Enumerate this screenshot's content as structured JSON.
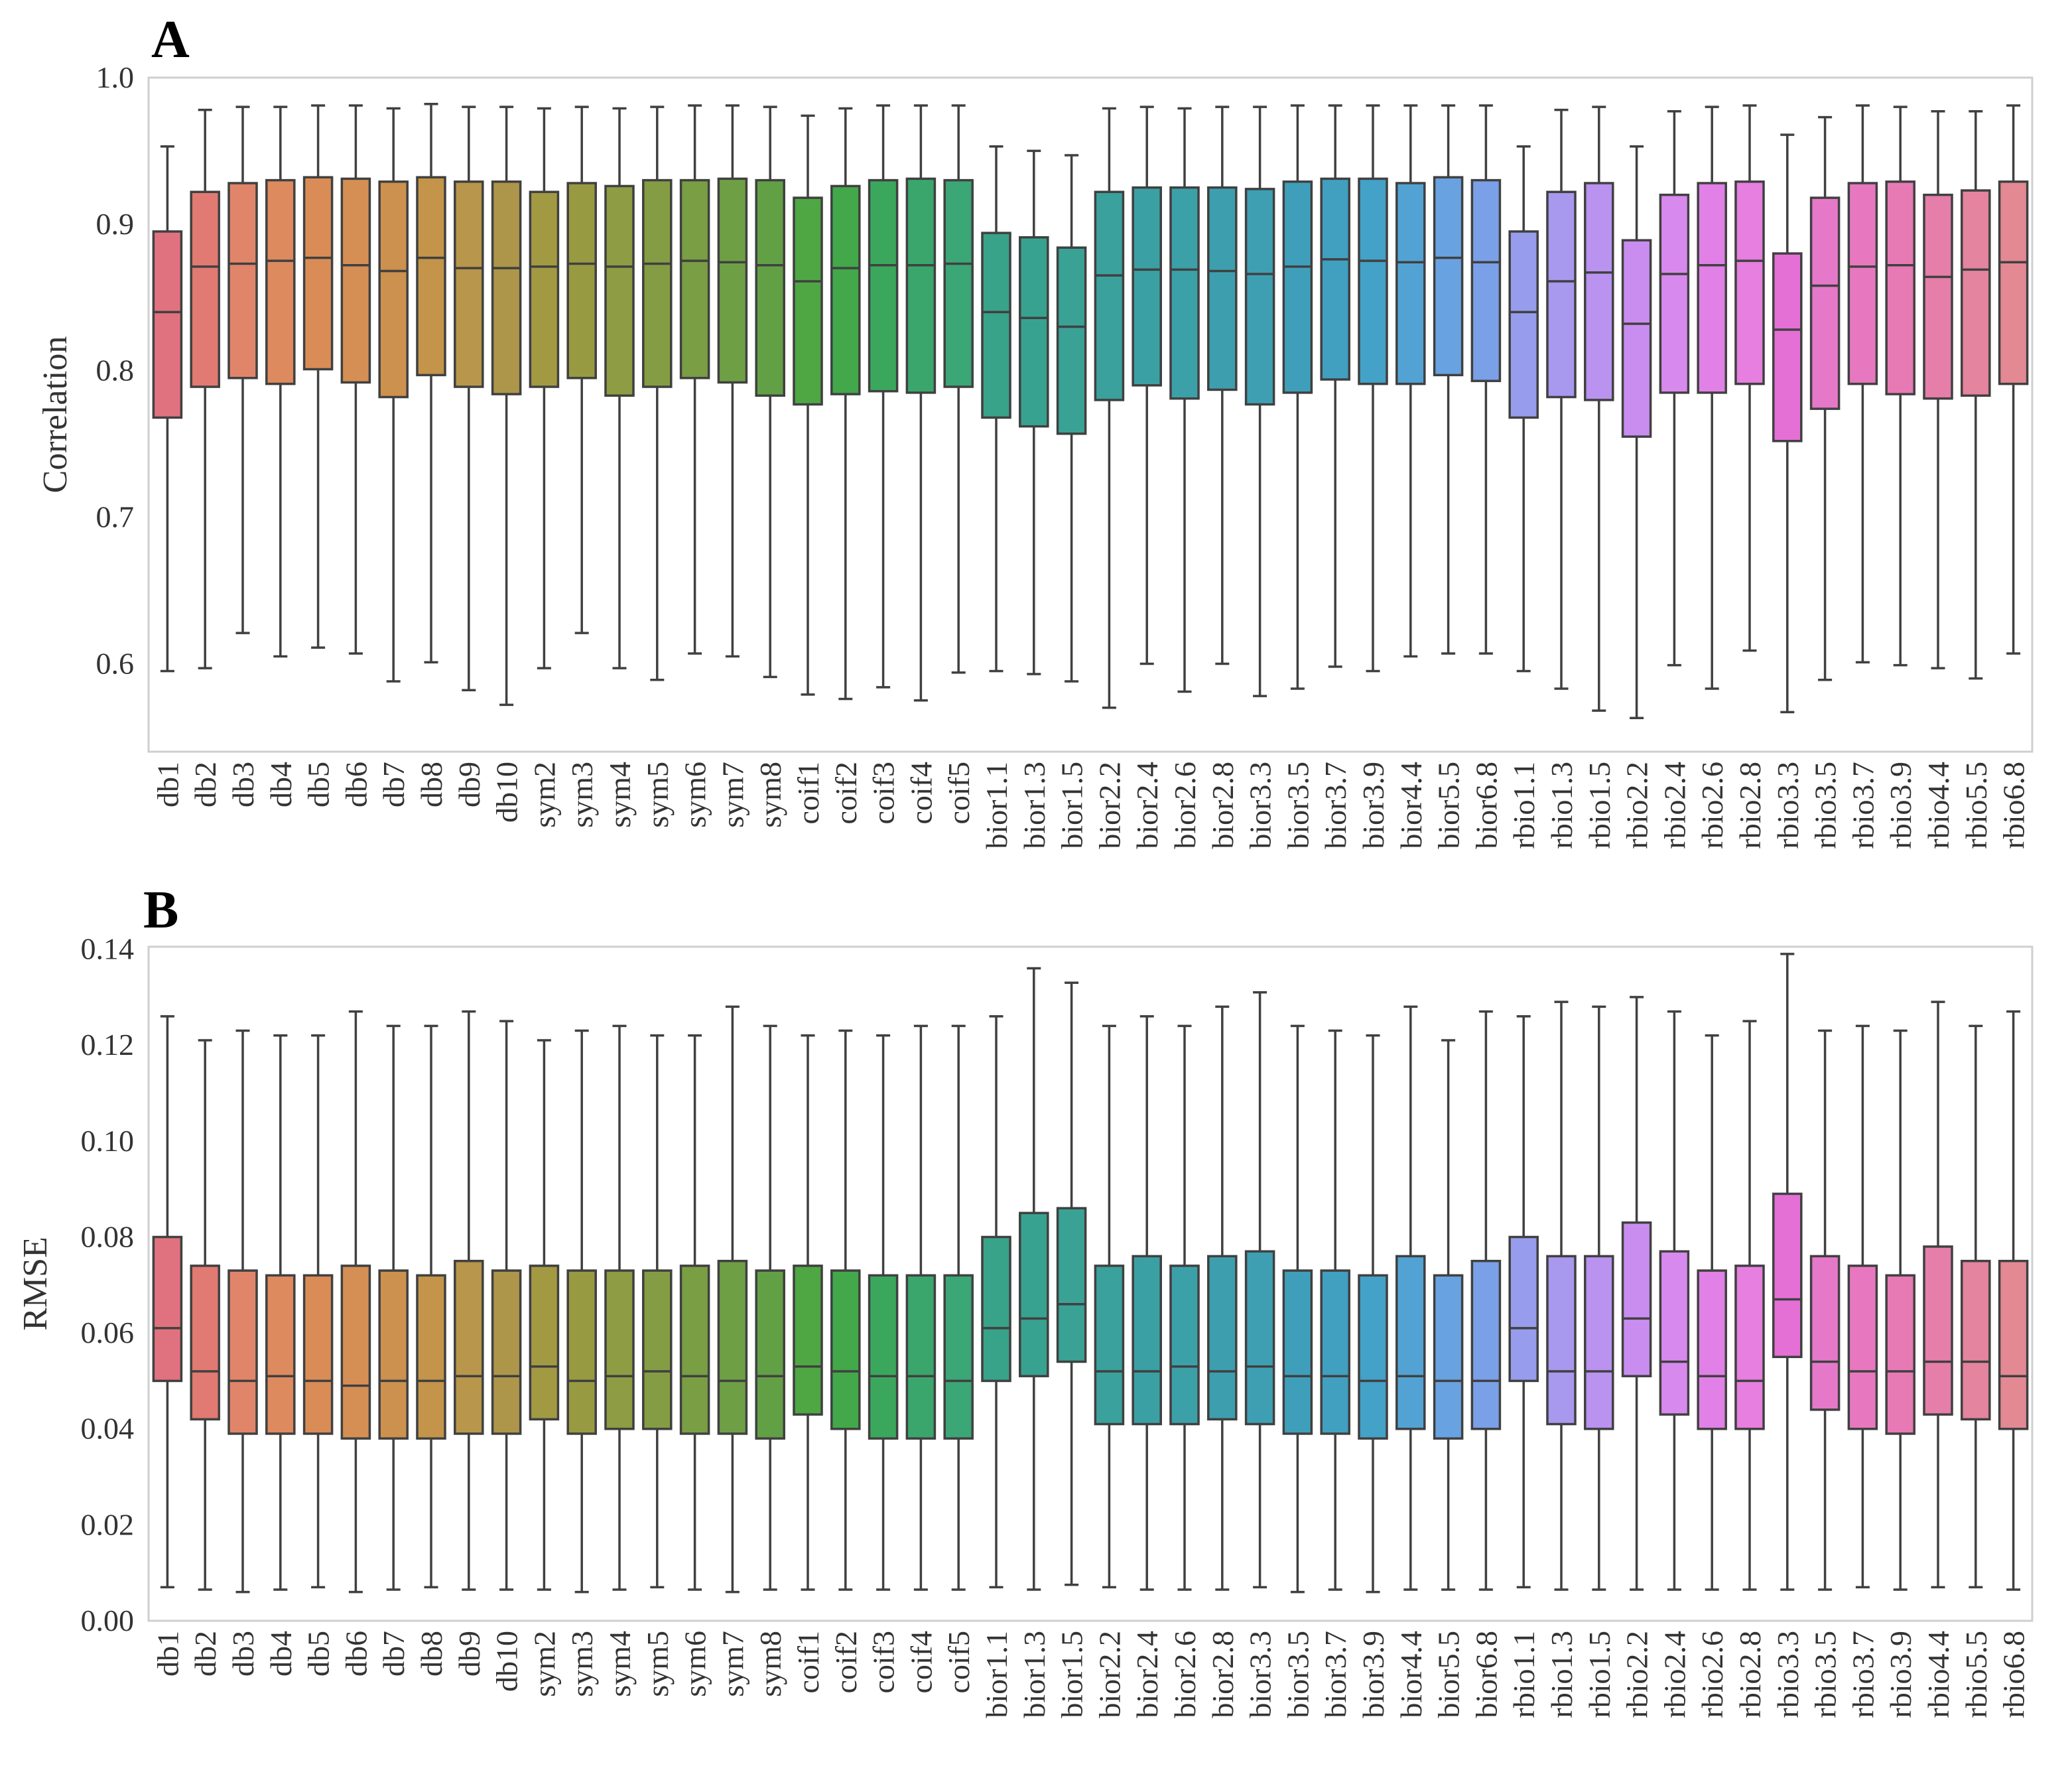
{
  "panels": [
    {
      "letter": "A"
    },
    {
      "letter": "B"
    }
  ],
  "chart_data": [
    {
      "type": "box",
      "panel": "A",
      "ylabel": "Correlation",
      "xlabel": "",
      "ylim": [
        0.54,
        1.0
      ],
      "yticks": [
        "0.6",
        "0.7",
        "0.8",
        "0.9",
        "1.0"
      ],
      "grid": false,
      "categories": [
        "db1",
        "db2",
        "db3",
        "db4",
        "db5",
        "db6",
        "db7",
        "db8",
        "db9",
        "db10",
        "sym2",
        "sym3",
        "sym4",
        "sym5",
        "sym6",
        "sym7",
        "sym8",
        "coif1",
        "coif2",
        "coif3",
        "coif4",
        "coif5",
        "bior1.1",
        "bior1.3",
        "bior1.5",
        "bior2.2",
        "bior2.4",
        "bior2.6",
        "bior2.8",
        "bior3.3",
        "bior3.5",
        "bior3.7",
        "bior3.9",
        "bior4.4",
        "bior5.5",
        "bior6.8",
        "rbio1.1",
        "rbio1.3",
        "rbio1.5",
        "rbio2.2",
        "rbio2.4",
        "rbio2.6",
        "rbio2.8",
        "rbio3.3",
        "rbio3.5",
        "rbio3.7",
        "rbio3.9",
        "rbio4.4",
        "rbio5.5",
        "rbio6.8"
      ],
      "colors": [
        "#e0727f",
        "#e17a72",
        "#e0856a",
        "#dd8a5f",
        "#da8c57",
        "#d58f54",
        "#cc914e",
        "#c39449",
        "#b8964b",
        "#ad964a",
        "#a29a43",
        "#989a42",
        "#8e9c43",
        "#849d44",
        "#799e44",
        "#6e9f45",
        "#62a046",
        "#4ea743",
        "#42a84a",
        "#3ba75d",
        "#3aa66c",
        "#3ba676",
        "#38a388",
        "#38a290",
        "#39a295",
        "#3aa19d",
        "#3ba0a3",
        "#3ca0a9",
        "#3d9fae",
        "#3e9fb3",
        "#3f9fba",
        "#41a0c0",
        "#44a1c7",
        "#52a3d3",
        "#68a2e0",
        "#7aa0e8",
        "#979dec",
        "#a898ee",
        "#b993ef",
        "#c98df0",
        "#d889ee",
        "#e180e6",
        "#e67fe0",
        "#e470d6",
        "#e678ca",
        "#e778bf",
        "#e77ab5",
        "#e57ea9",
        "#e4849e",
        "#e28994"
      ],
      "stats": [
        {
          "min": 0.595,
          "q1": 0.768,
          "median": 0.84,
          "q3": 0.895,
          "max": 0.953
        },
        {
          "min": 0.597,
          "q1": 0.789,
          "median": 0.871,
          "q3": 0.922,
          "max": 0.978
        },
        {
          "min": 0.621,
          "q1": 0.795,
          "median": 0.873,
          "q3": 0.928,
          "max": 0.98
        },
        {
          "min": 0.605,
          "q1": 0.791,
          "median": 0.875,
          "q3": 0.93,
          "max": 0.98
        },
        {
          "min": 0.611,
          "q1": 0.801,
          "median": 0.877,
          "q3": 0.932,
          "max": 0.981
        },
        {
          "min": 0.607,
          "q1": 0.792,
          "median": 0.872,
          "q3": 0.931,
          "max": 0.981
        },
        {
          "min": 0.588,
          "q1": 0.782,
          "median": 0.868,
          "q3": 0.929,
          "max": 0.979
        },
        {
          "min": 0.601,
          "q1": 0.797,
          "median": 0.877,
          "q3": 0.932,
          "max": 0.982
        },
        {
          "min": 0.582,
          "q1": 0.789,
          "median": 0.87,
          "q3": 0.929,
          "max": 0.98
        },
        {
          "min": 0.572,
          "q1": 0.784,
          "median": 0.87,
          "q3": 0.929,
          "max": 0.98
        },
        {
          "min": 0.597,
          "q1": 0.789,
          "median": 0.871,
          "q3": 0.922,
          "max": 0.979
        },
        {
          "min": 0.621,
          "q1": 0.795,
          "median": 0.873,
          "q3": 0.928,
          "max": 0.98
        },
        {
          "min": 0.597,
          "q1": 0.783,
          "median": 0.871,
          "q3": 0.926,
          "max": 0.979
        },
        {
          "min": 0.589,
          "q1": 0.789,
          "median": 0.873,
          "q3": 0.93,
          "max": 0.98
        },
        {
          "min": 0.607,
          "q1": 0.795,
          "median": 0.875,
          "q3": 0.93,
          "max": 0.981
        },
        {
          "min": 0.605,
          "q1": 0.792,
          "median": 0.874,
          "q3": 0.931,
          "max": 0.981
        },
        {
          "min": 0.591,
          "q1": 0.783,
          "median": 0.872,
          "q3": 0.93,
          "max": 0.98
        },
        {
          "min": 0.579,
          "q1": 0.777,
          "median": 0.861,
          "q3": 0.918,
          "max": 0.974
        },
        {
          "min": 0.576,
          "q1": 0.784,
          "median": 0.87,
          "q3": 0.926,
          "max": 0.979
        },
        {
          "min": 0.584,
          "q1": 0.786,
          "median": 0.872,
          "q3": 0.93,
          "max": 0.981
        },
        {
          "min": 0.575,
          "q1": 0.785,
          "median": 0.872,
          "q3": 0.931,
          "max": 0.981
        },
        {
          "min": 0.594,
          "q1": 0.789,
          "median": 0.873,
          "q3": 0.93,
          "max": 0.981
        },
        {
          "min": 0.595,
          "q1": 0.768,
          "median": 0.84,
          "q3": 0.894,
          "max": 0.953
        },
        {
          "min": 0.593,
          "q1": 0.762,
          "median": 0.836,
          "q3": 0.891,
          "max": 0.95
        },
        {
          "min": 0.588,
          "q1": 0.757,
          "median": 0.83,
          "q3": 0.884,
          "max": 0.947
        },
        {
          "min": 0.57,
          "q1": 0.78,
          "median": 0.865,
          "q3": 0.922,
          "max": 0.979
        },
        {
          "min": 0.6,
          "q1": 0.79,
          "median": 0.869,
          "q3": 0.925,
          "max": 0.98
        },
        {
          "min": 0.581,
          "q1": 0.781,
          "median": 0.869,
          "q3": 0.925,
          "max": 0.979
        },
        {
          "min": 0.6,
          "q1": 0.787,
          "median": 0.868,
          "q3": 0.925,
          "max": 0.98
        },
        {
          "min": 0.578,
          "q1": 0.777,
          "median": 0.866,
          "q3": 0.924,
          "max": 0.98
        },
        {
          "min": 0.583,
          "q1": 0.785,
          "median": 0.871,
          "q3": 0.929,
          "max": 0.981
        },
        {
          "min": 0.598,
          "q1": 0.794,
          "median": 0.876,
          "q3": 0.931,
          "max": 0.981
        },
        {
          "min": 0.595,
          "q1": 0.791,
          "median": 0.875,
          "q3": 0.931,
          "max": 0.981
        },
        {
          "min": 0.605,
          "q1": 0.791,
          "median": 0.874,
          "q3": 0.928,
          "max": 0.981
        },
        {
          "min": 0.607,
          "q1": 0.797,
          "median": 0.877,
          "q3": 0.932,
          "max": 0.981
        },
        {
          "min": 0.607,
          "q1": 0.793,
          "median": 0.874,
          "q3": 0.93,
          "max": 0.981
        },
        {
          "min": 0.595,
          "q1": 0.768,
          "median": 0.84,
          "q3": 0.895,
          "max": 0.953
        },
        {
          "min": 0.583,
          "q1": 0.782,
          "median": 0.861,
          "q3": 0.922,
          "max": 0.978
        },
        {
          "min": 0.568,
          "q1": 0.78,
          "median": 0.867,
          "q3": 0.928,
          "max": 0.98
        },
        {
          "min": 0.563,
          "q1": 0.755,
          "median": 0.832,
          "q3": 0.889,
          "max": 0.953
        },
        {
          "min": 0.599,
          "q1": 0.785,
          "median": 0.866,
          "q3": 0.92,
          "max": 0.977
        },
        {
          "min": 0.583,
          "q1": 0.785,
          "median": 0.872,
          "q3": 0.928,
          "max": 0.98
        },
        {
          "min": 0.609,
          "q1": 0.791,
          "median": 0.875,
          "q3": 0.929,
          "max": 0.981
        },
        {
          "min": 0.567,
          "q1": 0.752,
          "median": 0.828,
          "q3": 0.88,
          "max": 0.961
        },
        {
          "min": 0.589,
          "q1": 0.774,
          "median": 0.858,
          "q3": 0.918,
          "max": 0.973
        },
        {
          "min": 0.601,
          "q1": 0.791,
          "median": 0.871,
          "q3": 0.928,
          "max": 0.981
        },
        {
          "min": 0.599,
          "q1": 0.784,
          "median": 0.872,
          "q3": 0.929,
          "max": 0.98
        },
        {
          "min": 0.597,
          "q1": 0.781,
          "median": 0.864,
          "q3": 0.92,
          "max": 0.977
        },
        {
          "min": 0.59,
          "q1": 0.783,
          "median": 0.869,
          "q3": 0.923,
          "max": 0.977
        },
        {
          "min": 0.607,
          "q1": 0.791,
          "median": 0.874,
          "q3": 0.929,
          "max": 0.981
        }
      ]
    },
    {
      "type": "box",
      "panel": "B",
      "ylabel": "RMSE",
      "xlabel": "",
      "ylim": [
        0.0,
        0.1405
      ],
      "yticks": [
        "0.00",
        "0.02",
        "0.04",
        "0.06",
        "0.08",
        "0.10",
        "0.12",
        "0.14"
      ],
      "grid": false,
      "categories": [
        "db1",
        "db2",
        "db3",
        "db4",
        "db5",
        "db6",
        "db7",
        "db8",
        "db9",
        "db10",
        "sym2",
        "sym3",
        "sym4",
        "sym5",
        "sym6",
        "sym7",
        "sym8",
        "coif1",
        "coif2",
        "coif3",
        "coif4",
        "coif5",
        "bior1.1",
        "bior1.3",
        "bior1.5",
        "bior2.2",
        "bior2.4",
        "bior2.6",
        "bior2.8",
        "bior3.3",
        "bior3.5",
        "bior3.7",
        "bior3.9",
        "bior4.4",
        "bior5.5",
        "bior6.8",
        "rbio1.1",
        "rbio1.3",
        "rbio1.5",
        "rbio2.2",
        "rbio2.4",
        "rbio2.6",
        "rbio2.8",
        "rbio3.3",
        "rbio3.5",
        "rbio3.7",
        "rbio3.9",
        "rbio4.4",
        "rbio5.5",
        "rbio6.8"
      ],
      "colors": [
        "#e0727f",
        "#e17a72",
        "#e0856a",
        "#dd8a5f",
        "#da8c57",
        "#d58f54",
        "#cc914e",
        "#c39449",
        "#b8964b",
        "#ad964a",
        "#a29a43",
        "#989a42",
        "#8e9c43",
        "#849d44",
        "#799e44",
        "#6e9f45",
        "#62a046",
        "#4ea743",
        "#42a84a",
        "#3ba75d",
        "#3aa66c",
        "#3ba676",
        "#38a388",
        "#38a290",
        "#39a295",
        "#3aa19d",
        "#3ba0a3",
        "#3ca0a9",
        "#3d9fae",
        "#3e9fb3",
        "#3f9fba",
        "#41a0c0",
        "#44a1c7",
        "#52a3d3",
        "#68a2e0",
        "#7aa0e8",
        "#979dec",
        "#a898ee",
        "#b993ef",
        "#c98df0",
        "#d889ee",
        "#e180e6",
        "#e67fe0",
        "#e470d6",
        "#e678ca",
        "#e778bf",
        "#e77ab5",
        "#e57ea9",
        "#e4849e",
        "#e28994"
      ],
      "stats": [
        {
          "min": 0.007,
          "q1": 0.05,
          "median": 0.061,
          "q3": 0.08,
          "max": 0.126
        },
        {
          "min": 0.0065,
          "q1": 0.042,
          "median": 0.052,
          "q3": 0.074,
          "max": 0.121
        },
        {
          "min": 0.006,
          "q1": 0.039,
          "median": 0.05,
          "q3": 0.073,
          "max": 0.123
        },
        {
          "min": 0.0065,
          "q1": 0.039,
          "median": 0.051,
          "q3": 0.072,
          "max": 0.122
        },
        {
          "min": 0.007,
          "q1": 0.039,
          "median": 0.05,
          "q3": 0.072,
          "max": 0.122
        },
        {
          "min": 0.006,
          "q1": 0.038,
          "median": 0.049,
          "q3": 0.074,
          "max": 0.127
        },
        {
          "min": 0.0065,
          "q1": 0.038,
          "median": 0.05,
          "q3": 0.073,
          "max": 0.124
        },
        {
          "min": 0.007,
          "q1": 0.038,
          "median": 0.05,
          "q3": 0.072,
          "max": 0.124
        },
        {
          "min": 0.0065,
          "q1": 0.039,
          "median": 0.051,
          "q3": 0.075,
          "max": 0.127
        },
        {
          "min": 0.0065,
          "q1": 0.039,
          "median": 0.051,
          "q3": 0.073,
          "max": 0.125
        },
        {
          "min": 0.0065,
          "q1": 0.042,
          "median": 0.053,
          "q3": 0.074,
          "max": 0.121
        },
        {
          "min": 0.006,
          "q1": 0.039,
          "median": 0.05,
          "q3": 0.073,
          "max": 0.123
        },
        {
          "min": 0.0065,
          "q1": 0.04,
          "median": 0.051,
          "q3": 0.073,
          "max": 0.124
        },
        {
          "min": 0.007,
          "q1": 0.04,
          "median": 0.052,
          "q3": 0.073,
          "max": 0.122
        },
        {
          "min": 0.0065,
          "q1": 0.039,
          "median": 0.051,
          "q3": 0.074,
          "max": 0.122
        },
        {
          "min": 0.006,
          "q1": 0.039,
          "median": 0.05,
          "q3": 0.075,
          "max": 0.128
        },
        {
          "min": 0.0065,
          "q1": 0.038,
          "median": 0.051,
          "q3": 0.073,
          "max": 0.124
        },
        {
          "min": 0.0065,
          "q1": 0.043,
          "median": 0.053,
          "q3": 0.074,
          "max": 0.122
        },
        {
          "min": 0.0065,
          "q1": 0.04,
          "median": 0.052,
          "q3": 0.073,
          "max": 0.123
        },
        {
          "min": 0.0065,
          "q1": 0.038,
          "median": 0.051,
          "q3": 0.072,
          "max": 0.122
        },
        {
          "min": 0.0065,
          "q1": 0.038,
          "median": 0.051,
          "q3": 0.072,
          "max": 0.124
        },
        {
          "min": 0.0065,
          "q1": 0.038,
          "median": 0.05,
          "q3": 0.072,
          "max": 0.124
        },
        {
          "min": 0.007,
          "q1": 0.05,
          "median": 0.061,
          "q3": 0.08,
          "max": 0.126
        },
        {
          "min": 0.0065,
          "q1": 0.051,
          "median": 0.063,
          "q3": 0.085,
          "max": 0.136
        },
        {
          "min": 0.0075,
          "q1": 0.054,
          "median": 0.066,
          "q3": 0.086,
          "max": 0.133
        },
        {
          "min": 0.007,
          "q1": 0.041,
          "median": 0.052,
          "q3": 0.074,
          "max": 0.124
        },
        {
          "min": 0.0065,
          "q1": 0.041,
          "median": 0.052,
          "q3": 0.076,
          "max": 0.126
        },
        {
          "min": 0.0065,
          "q1": 0.041,
          "median": 0.053,
          "q3": 0.074,
          "max": 0.124
        },
        {
          "min": 0.0065,
          "q1": 0.042,
          "median": 0.052,
          "q3": 0.076,
          "max": 0.128
        },
        {
          "min": 0.007,
          "q1": 0.041,
          "median": 0.053,
          "q3": 0.077,
          "max": 0.131
        },
        {
          "min": 0.006,
          "q1": 0.039,
          "median": 0.051,
          "q3": 0.073,
          "max": 0.124
        },
        {
          "min": 0.0065,
          "q1": 0.039,
          "median": 0.051,
          "q3": 0.073,
          "max": 0.123
        },
        {
          "min": 0.006,
          "q1": 0.038,
          "median": 0.05,
          "q3": 0.072,
          "max": 0.122
        },
        {
          "min": 0.0065,
          "q1": 0.04,
          "median": 0.051,
          "q3": 0.076,
          "max": 0.128
        },
        {
          "min": 0.0065,
          "q1": 0.038,
          "median": 0.05,
          "q3": 0.072,
          "max": 0.121
        },
        {
          "min": 0.0065,
          "q1": 0.04,
          "median": 0.05,
          "q3": 0.075,
          "max": 0.127
        },
        {
          "min": 0.007,
          "q1": 0.05,
          "median": 0.061,
          "q3": 0.08,
          "max": 0.126
        },
        {
          "min": 0.0065,
          "q1": 0.041,
          "median": 0.052,
          "q3": 0.076,
          "max": 0.129
        },
        {
          "min": 0.0065,
          "q1": 0.04,
          "median": 0.052,
          "q3": 0.076,
          "max": 0.128
        },
        {
          "min": 0.0065,
          "q1": 0.051,
          "median": 0.063,
          "q3": 0.083,
          "max": 0.13
        },
        {
          "min": 0.0065,
          "q1": 0.043,
          "median": 0.054,
          "q3": 0.077,
          "max": 0.127
        },
        {
          "min": 0.0065,
          "q1": 0.04,
          "median": 0.051,
          "q3": 0.073,
          "max": 0.122
        },
        {
          "min": 0.0065,
          "q1": 0.04,
          "median": 0.05,
          "q3": 0.074,
          "max": 0.125
        },
        {
          "min": 0.0065,
          "q1": 0.055,
          "median": 0.067,
          "q3": 0.089,
          "max": 0.139
        },
        {
          "min": 0.0065,
          "q1": 0.044,
          "median": 0.054,
          "q3": 0.076,
          "max": 0.123
        },
        {
          "min": 0.007,
          "q1": 0.04,
          "median": 0.052,
          "q3": 0.074,
          "max": 0.124
        },
        {
          "min": 0.0065,
          "q1": 0.039,
          "median": 0.052,
          "q3": 0.072,
          "max": 0.123
        },
        {
          "min": 0.007,
          "q1": 0.043,
          "median": 0.054,
          "q3": 0.078,
          "max": 0.129
        },
        {
          "min": 0.007,
          "q1": 0.042,
          "median": 0.054,
          "q3": 0.075,
          "max": 0.124
        },
        {
          "min": 0.0065,
          "q1": 0.04,
          "median": 0.051,
          "q3": 0.075,
          "max": 0.127
        }
      ]
    }
  ]
}
